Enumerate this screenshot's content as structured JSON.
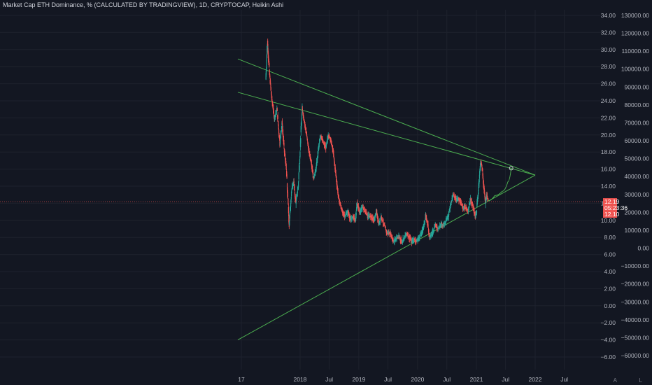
{
  "title": "Market Cap ETH Dominance, % (CALCULATED BY TRADINGVIEW), 1D, CRYPTOCAP, Heikin Ashi",
  "corner_buttons": [
    "A",
    "L"
  ],
  "colors": {
    "background": "#131722",
    "grid": "#1e222d",
    "up": "#26a69a",
    "down": "#ef5350",
    "trendline": "#4caf50",
    "price_line": "#ef5350",
    "axis_text": "#b2b5be"
  },
  "chart_data": {
    "type": "candlestick",
    "title": "Market Cap ETH Dominance, % (CALCULATED BY TRADINGVIEW), 1D, CRYPTOCAP, Heikin Ashi",
    "ylim": [
      -6.8,
      35
    ],
    "y_ticks": [
      34,
      32,
      30,
      28,
      26,
      24,
      22,
      20,
      18,
      16,
      14,
      12,
      10,
      8,
      6,
      4,
      2,
      0,
      -2,
      -4,
      -6
    ],
    "y_tick_labels": [
      "34.00",
      "32.00",
      "30.00",
      "28.00",
      "26.00",
      "24.00",
      "22.00",
      "20.00",
      "18.00",
      "16.00",
      "14.00",
      "12.00",
      "10.00",
      "8.00",
      "6.00",
      "4.00",
      "2.00",
      "0.00",
      "−2.00",
      "−4.00",
      "−6.00"
    ],
    "secondary_ticks": [
      130000,
      120000,
      110000,
      100000,
      90000,
      80000,
      70000,
      60000,
      50000,
      40000,
      30000,
      20000,
      10000,
      0,
      -10000,
      -20000,
      -30000,
      -40000,
      -50000,
      -60000
    ],
    "secondary_tick_labels": [
      "130000.00",
      "120000.00",
      "110000.00",
      "100000.00",
      "90000.00",
      "80000.00",
      "70000.00",
      "60000.00",
      "50000.00",
      "40000.00",
      "30000.00",
      "20000.00",
      "10000.00",
      "0.00",
      "−10000.00",
      "−20000.00",
      "−30000.00",
      "−40000.00",
      "−50000.00",
      "−60000.00"
    ],
    "xlim": [
      "2016-11-10",
      "2022-09-20"
    ],
    "x_ticks": [
      {
        "date": "2017-01-01",
        "label": "17"
      },
      {
        "date": "2018-01-01",
        "label": "2018"
      },
      {
        "date": "2018-07-01",
        "label": "Jul"
      },
      {
        "date": "2019-01-01",
        "label": "2019"
      },
      {
        "date": "2019-07-01",
        "label": "Jul"
      },
      {
        "date": "2020-01-01",
        "label": "2020"
      },
      {
        "date": "2020-07-01",
        "label": "Jul"
      },
      {
        "date": "2021-01-01",
        "label": "2021"
      },
      {
        "date": "2021-07-01",
        "label": "Jul"
      },
      {
        "date": "2022-01-01",
        "label": "2022"
      },
      {
        "date": "2022-07-01",
        "label": "Jul"
      }
    ],
    "current_price": {
      "value": 12.19,
      "label": "12.19",
      "countdown": "05:23:36",
      "second_label": "12.10"
    },
    "price_path": [
      [
        "2017-06-01",
        26.5
      ],
      [
        "2017-06-12",
        31.0
      ],
      [
        "2017-06-25",
        27.0
      ],
      [
        "2017-07-10",
        24.0
      ],
      [
        "2017-07-25",
        22.0
      ],
      [
        "2017-08-10",
        23.0
      ],
      [
        "2017-08-28",
        19.0
      ],
      [
        "2017-09-10",
        21.5
      ],
      [
        "2017-09-25",
        18.0
      ],
      [
        "2017-10-05",
        16.5
      ],
      [
        "2017-10-15",
        13.0
      ],
      [
        "2017-10-25",
        9.5
      ],
      [
        "2017-11-08",
        13.5
      ],
      [
        "2017-11-22",
        14.5
      ],
      [
        "2017-12-05",
        12.0
      ],
      [
        "2017-12-20",
        14.0
      ],
      [
        "2018-01-05",
        20.0
      ],
      [
        "2018-01-14",
        23.0
      ],
      [
        "2018-01-28",
        21.5
      ],
      [
        "2018-02-10",
        20.0
      ],
      [
        "2018-02-25",
        18.0
      ],
      [
        "2018-03-10",
        17.0
      ],
      [
        "2018-03-25",
        15.0
      ],
      [
        "2018-04-10",
        16.0
      ],
      [
        "2018-04-25",
        18.5
      ],
      [
        "2018-05-10",
        20.0
      ],
      [
        "2018-05-25",
        19.0
      ],
      [
        "2018-06-10",
        18.5
      ],
      [
        "2018-06-25",
        20.0
      ],
      [
        "2018-07-10",
        19.5
      ],
      [
        "2018-07-25",
        18.0
      ],
      [
        "2018-08-10",
        15.5
      ],
      [
        "2018-08-25",
        13.0
      ],
      [
        "2018-09-05",
        12.0
      ],
      [
        "2018-09-20",
        11.0
      ],
      [
        "2018-10-05",
        10.5
      ],
      [
        "2018-10-25",
        11.0
      ],
      [
        "2018-11-10",
        10.0
      ],
      [
        "2018-11-25",
        10.5
      ],
      [
        "2018-12-10",
        10.0
      ],
      [
        "2018-12-22",
        12.0
      ],
      [
        "2019-01-05",
        11.0
      ],
      [
        "2019-01-25",
        11.5
      ],
      [
        "2019-02-10",
        11.0
      ],
      [
        "2019-02-25",
        10.5
      ],
      [
        "2019-03-15",
        10.5
      ],
      [
        "2019-04-05",
        10.0
      ],
      [
        "2019-04-20",
        11.0
      ],
      [
        "2019-05-05",
        9.5
      ],
      [
        "2019-05-20",
        10.5
      ],
      [
        "2019-06-05",
        9.5
      ],
      [
        "2019-06-25",
        8.5
      ],
      [
        "2019-07-15",
        8.5
      ],
      [
        "2019-08-05",
        7.5
      ],
      [
        "2019-08-25",
        8.0
      ],
      [
        "2019-09-10",
        8.0
      ],
      [
        "2019-09-25",
        7.5
      ],
      [
        "2019-10-10",
        8.0
      ],
      [
        "2019-10-25",
        8.5
      ],
      [
        "2019-11-10",
        8.0
      ],
      [
        "2019-11-25",
        7.5
      ],
      [
        "2019-12-10",
        7.8
      ],
      [
        "2019-12-25",
        7.5
      ],
      [
        "2020-01-10",
        8.0
      ],
      [
        "2020-01-25",
        8.5
      ],
      [
        "2020-02-10",
        9.5
      ],
      [
        "2020-02-20",
        10.5
      ],
      [
        "2020-03-05",
        9.5
      ],
      [
        "2020-03-15",
        8.0
      ],
      [
        "2020-04-01",
        8.5
      ],
      [
        "2020-04-20",
        9.5
      ],
      [
        "2020-05-05",
        9.0
      ],
      [
        "2020-05-25",
        9.5
      ],
      [
        "2020-06-10",
        9.5
      ],
      [
        "2020-06-25",
        10.0
      ],
      [
        "2020-07-10",
        10.5
      ],
      [
        "2020-07-25",
        12.0
      ],
      [
        "2020-08-10",
        13.0
      ],
      [
        "2020-08-25",
        12.5
      ],
      [
        "2020-09-10",
        12.5
      ],
      [
        "2020-09-25",
        12.0
      ],
      [
        "2020-10-10",
        11.5
      ],
      [
        "2020-10-25",
        11.5
      ],
      [
        "2020-11-10",
        11.0
      ],
      [
        "2020-11-25",
        12.5
      ],
      [
        "2020-12-10",
        11.5
      ],
      [
        "2020-12-25",
        10.5
      ],
      [
        "2021-01-01",
        11.0
      ],
      [
        "2021-01-10",
        13.0
      ],
      [
        "2021-01-20",
        15.5
      ],
      [
        "2021-01-28",
        17.0
      ],
      [
        "2021-02-05",
        16.0
      ],
      [
        "2021-02-15",
        14.0
      ],
      [
        "2021-02-25",
        12.0
      ],
      [
        "2021-03-05",
        13.0
      ],
      [
        "2021-03-15",
        12.3
      ]
    ],
    "trendlines": [
      {
        "name": "upper-resistance",
        "from": [
          "2016-12-10",
          28.9
        ],
        "to": [
          "2022-01-01",
          15.3
        ]
      },
      {
        "name": "inner-resistance",
        "from": [
          "2016-12-10",
          25.0
        ],
        "to": [
          "2022-01-01",
          15.3
        ]
      },
      {
        "name": "support",
        "from": [
          "2016-12-10",
          -4.0
        ],
        "to": [
          "2022-01-01",
          15.3
        ]
      }
    ],
    "projection": {
      "points": [
        [
          "2021-03-15",
          12.3
        ],
        [
          "2021-04-25",
          12.9
        ],
        [
          "2021-06-10",
          13.4
        ],
        [
          "2021-07-15",
          14.5
        ],
        [
          "2021-08-05",
          16.1
        ]
      ],
      "target_marker": [
        "2021-08-05",
        16.1
      ]
    }
  }
}
